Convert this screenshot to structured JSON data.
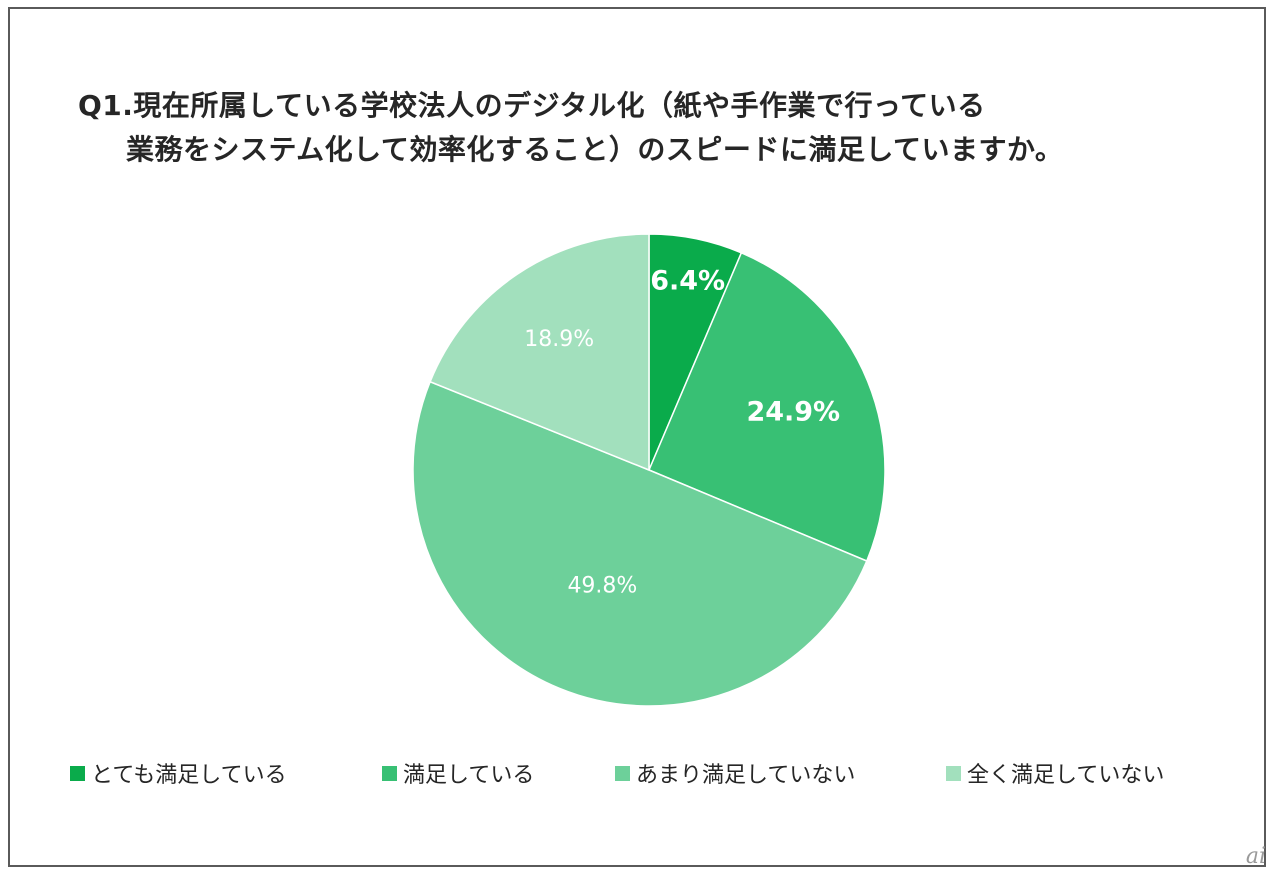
{
  "chart_data": {
    "type": "pie",
    "title_line1": "Q1.現在所属している学校法人のデジタル化（紙や手作業で行っている",
    "title_line2": "業務をシステム化して効率化すること）のスピードに満足していますか。",
    "slices": [
      {
        "label": "とても満足している",
        "value": 6.4,
        "display": "6.4%",
        "color": "#0aab4b",
        "label_color": "#ffffff",
        "bold": true
      },
      {
        "label": "満足している",
        "value": 24.9,
        "display": "24.9%",
        "color": "#38c074",
        "label_color": "#ffffff",
        "bold": true
      },
      {
        "label": "あまり満足していない",
        "value": 49.8,
        "display": "49.8%",
        "color": "#6dd09a",
        "label_color": "#ffffff",
        "bold": false
      },
      {
        "label": "全く満足していない",
        "value": 18.9,
        "display": "18.9%",
        "color": "#a2e0bd",
        "label_color": "#ffffff",
        "bold": false
      }
    ],
    "legend_position": "bottom",
    "start_angle": "top, clockwise"
  },
  "watermark": "ai"
}
